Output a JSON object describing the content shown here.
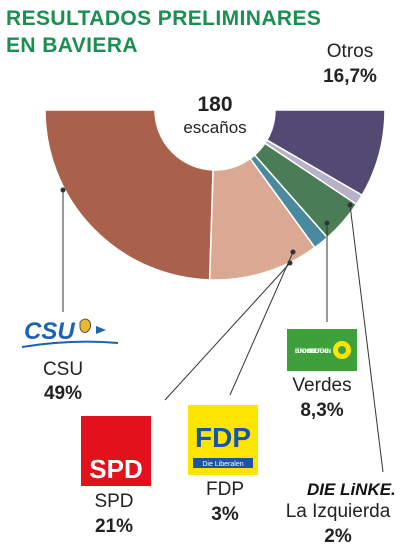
{
  "chart_data": {
    "type": "pie",
    "variant": "semicircle-donut",
    "title": "RESULTADOS PRELIMINARES EN BAVIERA",
    "title_lines": [
      "RESULTADOS PRELIMINARES",
      "EN BAVIERA"
    ],
    "center_value": "180",
    "center_label": "escaños",
    "slices": [
      {
        "name": "CSU",
        "pct_label": "49%",
        "value": 49,
        "color": "#a9614b"
      },
      {
        "name": "SPD",
        "pct_label": "21%",
        "value": 21,
        "color": "#dba894"
      },
      {
        "name": "FDP",
        "pct_label": "3%",
        "value": 3,
        "color": "#4a8a9e"
      },
      {
        "name": "Verdes",
        "pct_label": "8,3%",
        "value": 8.3,
        "color": "#4a7c55"
      },
      {
        "name": "La Izquierda",
        "pct_label": "2%",
        "value": 2,
        "color": "#b7b2c8"
      },
      {
        "name": "Otros",
        "pct_label": "16,7%",
        "value": 16.7,
        "color": "#534a74"
      }
    ]
  },
  "logos": {
    "csu": {
      "text": "CSU",
      "color": "#1d62b5"
    },
    "spd": {
      "text": "SPD",
      "color": "#e3111b"
    },
    "fdp": {
      "text": "FDP",
      "sub": "Die Liberalen",
      "color": "#ffe400",
      "text_color": "#1557a6"
    },
    "gruene": {
      "text": "BÜNDNIS 90 DIE GRÜNEN",
      "color": "#3ea03a"
    },
    "linke": {
      "text": "DIE LiNKE."
    }
  }
}
